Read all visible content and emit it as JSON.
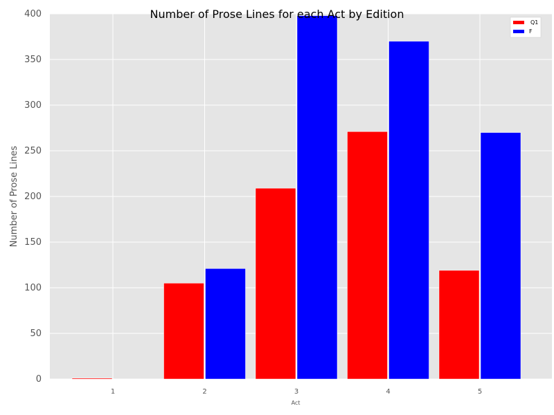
{
  "chart_data": {
    "type": "bar",
    "title": "Number of Prose Lines for each Act by Edition",
    "xlabel": "Act",
    "ylabel": "Number of Prose Lines",
    "categories": [
      "1",
      "2",
      "3",
      "4",
      "5"
    ],
    "series": [
      {
        "name": "Q1",
        "color": "#ff0000",
        "values": [
          1,
          105,
          209,
          271,
          119
        ]
      },
      {
        "name": "F",
        "color": "#0000ff",
        "values": [
          0,
          121,
          398,
          370,
          270
        ]
      }
    ],
    "ylim": [
      0,
      400
    ],
    "yticks": [
      "0",
      "50",
      "100",
      "150",
      "200",
      "250",
      "300",
      "350",
      "400"
    ],
    "grid": true,
    "legend_position": "top-right",
    "plot_background": "#e5e5e5"
  }
}
